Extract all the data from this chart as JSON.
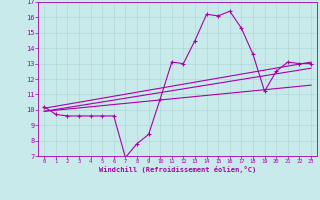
{
  "xlabel": "Windchill (Refroidissement éolien,°C)",
  "bg_color": "#c8eaea",
  "grid_color": "#b0d8d8",
  "line_color": "#aa00aa",
  "xlim": [
    -0.5,
    23.5
  ],
  "ylim": [
    7,
    17
  ],
  "xticks": [
    0,
    1,
    2,
    3,
    4,
    5,
    6,
    7,
    8,
    9,
    10,
    11,
    12,
    13,
    14,
    15,
    16,
    17,
    18,
    19,
    20,
    21,
    22,
    23
  ],
  "yticks": [
    7,
    8,
    9,
    10,
    11,
    12,
    13,
    14,
    15,
    16,
    17
  ],
  "line1_x": [
    0,
    1,
    2,
    3,
    4,
    5,
    6,
    7,
    8,
    9,
    10,
    11,
    12,
    13,
    14,
    15,
    16,
    17,
    18,
    19,
    20,
    21,
    22,
    23
  ],
  "line1_y": [
    10.2,
    9.7,
    9.6,
    9.6,
    9.6,
    9.6,
    9.6,
    6.9,
    7.8,
    8.4,
    10.7,
    13.1,
    13.0,
    14.5,
    16.2,
    16.1,
    16.4,
    15.3,
    13.6,
    11.2,
    12.5,
    13.1,
    13.0,
    13.0
  ],
  "line2_x": [
    0,
    23
  ],
  "line2_y": [
    9.9,
    12.7
  ],
  "line3_x": [
    0,
    23
  ],
  "line3_y": [
    9.9,
    11.6
  ],
  "line4_x": [
    0,
    23
  ],
  "line4_y": [
    10.1,
    13.1
  ]
}
